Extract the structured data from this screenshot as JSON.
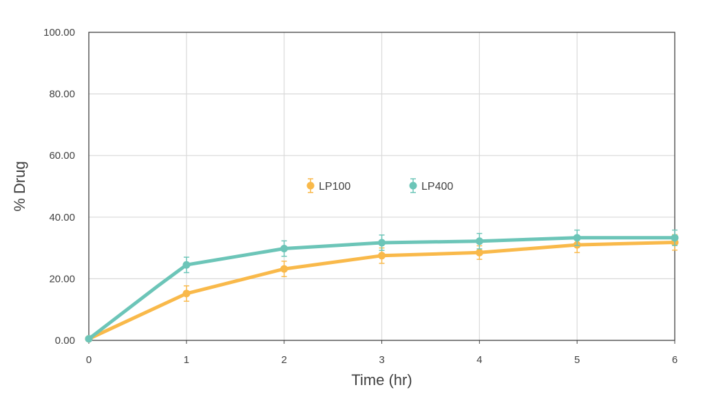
{
  "chart_data": {
    "type": "line",
    "title": "",
    "xlabel": "Time (hr)",
    "ylabel": "% Drug",
    "xlim": [
      0,
      6
    ],
    "ylim": [
      0,
      100
    ],
    "x_ticks": [
      "0",
      "1",
      "2",
      "3",
      "4",
      "5",
      "6"
    ],
    "y_ticks": [
      "0.00",
      "20.00",
      "40.00",
      "60.00",
      "80.00",
      "100.00"
    ],
    "grid": true,
    "legend_position": "center",
    "series": [
      {
        "name": "LP100",
        "color": "#f9b94a",
        "x": [
          0,
          1,
          2,
          3,
          4,
          5,
          6
        ],
        "y": [
          0.5,
          15.2,
          23.2,
          27.5,
          28.5,
          31.0,
          31.8
        ],
        "error": [
          0,
          2.5,
          2.5,
          2.5,
          2.2,
          2.5,
          2.5
        ]
      },
      {
        "name": "LP400",
        "color": "#6cc5b8",
        "x": [
          0,
          0.7,
          1,
          2,
          3,
          4,
          5,
          6
        ],
        "y": [
          0.5,
          17.5,
          24.5,
          29.8,
          31.7,
          32.2,
          33.3,
          33.3
        ],
        "error": [
          0,
          0,
          2.5,
          2.5,
          2.5,
          2.5,
          2.5,
          2.5
        ],
        "marker_x": [
          0,
          1,
          2,
          3,
          4,
          5,
          6
        ]
      }
    ]
  }
}
